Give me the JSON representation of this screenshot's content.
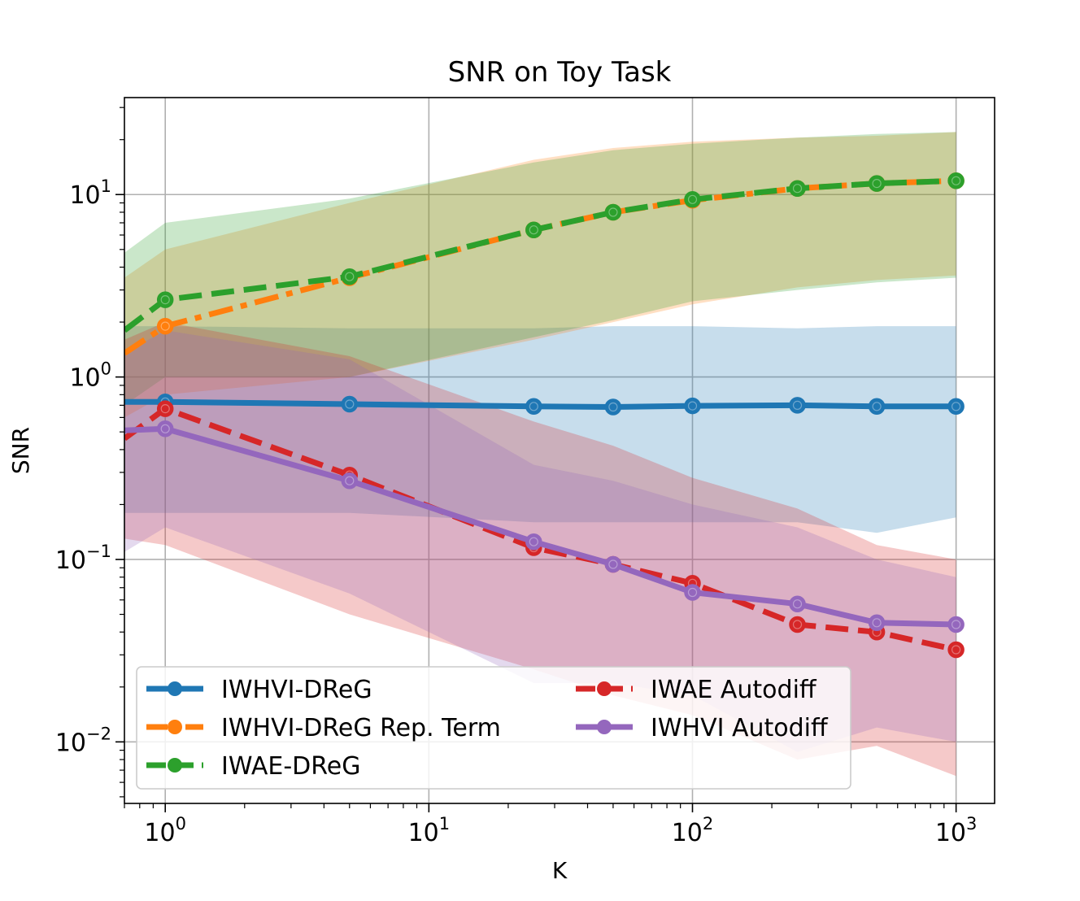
{
  "chart_data": {
    "type": "line",
    "title": "SNR on Toy Task",
    "xlabel": "K",
    "ylabel": "SNR",
    "xscale": "log",
    "yscale": "log",
    "xlim": [
      0.7,
      1400
    ],
    "ylim": [
      0.0046,
      34
    ],
    "grid": true,
    "legend_position": "lower-left",
    "x_ticks": [
      {
        "value": 1,
        "base": "10",
        "exp": "0"
      },
      {
        "value": 10,
        "base": "10",
        "exp": "1"
      },
      {
        "value": 100,
        "base": "10",
        "exp": "2"
      },
      {
        "value": 1000,
        "base": "10",
        "exp": "3"
      }
    ],
    "y_ticks": [
      {
        "value": 0.01,
        "base": "10",
        "exp": "−2"
      },
      {
        "value": 0.1,
        "base": "10",
        "exp": "−1"
      },
      {
        "value": 1,
        "base": "10",
        "exp": "0"
      },
      {
        "value": 10,
        "base": "10",
        "exp": "1"
      }
    ],
    "x": [
      0.7,
      1,
      5,
      25,
      50,
      100,
      250,
      500,
      1000
    ],
    "series": [
      {
        "name": "IWHVI-DReG",
        "color": "#1f77b4",
        "dash": "solid",
        "values": [
          0.73,
          0.73,
          0.71,
          0.69,
          0.685,
          0.695,
          0.7,
          0.69,
          0.69
        ],
        "band_low": [
          0.18,
          0.18,
          0.18,
          0.16,
          0.16,
          0.16,
          0.16,
          0.14,
          0.17
        ],
        "band_high": [
          1.9,
          1.9,
          1.85,
          1.85,
          1.9,
          1.9,
          1.85,
          1.9,
          1.9
        ]
      },
      {
        "name": "IWHVI-DReG Rep. Term",
        "color": "#ff7f0e",
        "dash": "dashdot",
        "values": [
          1.35,
          1.9,
          3.5,
          6.4,
          8.0,
          9.3,
          10.8,
          11.5,
          11.9
        ],
        "band_low": [
          0.6,
          0.8,
          1.0,
          1.6,
          2.0,
          2.5,
          3.1,
          3.4,
          3.6
        ],
        "band_high": [
          3.5,
          5.0,
          9.0,
          15.5,
          18.0,
          19.5,
          20.5,
          21.0,
          22.0
        ]
      },
      {
        "name": "IWAE-DReG",
        "color": "#2ca02c",
        "dash": "dashed",
        "values": [
          1.8,
          2.65,
          3.55,
          6.4,
          8.0,
          9.4,
          10.8,
          11.5,
          11.9
        ],
        "band_low": [
          0.7,
          1.0,
          1.0,
          1.65,
          2.05,
          2.6,
          3.0,
          3.3,
          3.5
        ],
        "band_high": [
          4.8,
          7.0,
          9.5,
          15.0,
          17.5,
          19.0,
          20.5,
          21.5,
          22.0
        ]
      },
      {
        "name": "IWAE Autodiff",
        "color": "#d62728",
        "dash": "dashed",
        "values": [
          0.46,
          0.67,
          0.29,
          0.116,
          0.094,
          0.074,
          0.044,
          0.04,
          0.032
        ],
        "band_low": [
          0.13,
          0.12,
          0.05,
          0.025,
          0.018,
          0.014,
          0.008,
          0.0095,
          0.0065
        ],
        "band_high": [
          1.6,
          2.0,
          1.3,
          0.57,
          0.42,
          0.28,
          0.19,
          0.12,
          0.1
        ]
      },
      {
        "name": "IWHVI Autodiff",
        "color": "#9467bd",
        "dash": "solid",
        "values": [
          0.51,
          0.52,
          0.27,
          0.125,
          0.094,
          0.066,
          0.057,
          0.045,
          0.044
        ],
        "band_low": [
          0.11,
          0.15,
          0.065,
          0.021,
          0.021,
          0.018,
          0.0088,
          0.012,
          0.01
        ],
        "band_high": [
          1.35,
          1.8,
          1.25,
          0.33,
          0.27,
          0.2,
          0.15,
          0.1,
          0.08
        ]
      }
    ]
  }
}
